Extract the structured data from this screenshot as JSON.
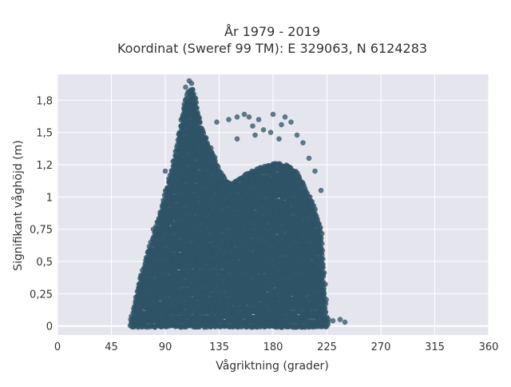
{
  "chart_data": {
    "type": "scatter",
    "title_line1": "År 1979 - 2019",
    "title_line2": "Koordinat (Sweref 99 TM): E 329063, N 6124283",
    "xlabel": "Vågriktning (grader)",
    "ylabel": "Signifikant våghöjd (m)",
    "xlim": [
      0,
      360
    ],
    "ylim": [
      -0.07,
      1.95
    ],
    "xticks": [
      {
        "value": 0,
        "label": "0"
      },
      {
        "value": 45,
        "label": "45"
      },
      {
        "value": 90,
        "label": "90"
      },
      {
        "value": 135,
        "label": "135"
      },
      {
        "value": 180,
        "label": "180"
      },
      {
        "value": 225,
        "label": "225"
      },
      {
        "value": 270,
        "label": "270"
      },
      {
        "value": 315,
        "label": "315"
      },
      {
        "value": 360,
        "label": "360"
      }
    ],
    "yticks": [
      {
        "value": 0,
        "label": "0"
      },
      {
        "value": 0.25,
        "label": "0,25"
      },
      {
        "value": 0.5,
        "label": "0,5"
      },
      {
        "value": 0.75,
        "label": "0,75"
      },
      {
        "value": 1.0,
        "label": "1"
      },
      {
        "value": 1.25,
        "label": "1,2"
      },
      {
        "value": 1.5,
        "label": "1,5"
      },
      {
        "value": 1.75,
        "label": "1,8"
      }
    ],
    "grid": true,
    "colors": {
      "background": "#e5e5ee",
      "grid": "#ffffff",
      "point": "#2e5266"
    },
    "envelope": {
      "x": [
        60,
        63,
        66,
        70,
        75,
        80,
        85,
        90,
        95,
        100,
        103,
        106,
        110,
        113,
        116,
        120,
        125,
        130,
        135,
        140,
        145,
        150,
        155,
        160,
        165,
        170,
        175,
        180,
        185,
        190,
        195,
        200,
        205,
        210,
        215,
        220,
        225,
        230
      ],
      "y_max": [
        0.02,
        0.1,
        0.25,
        0.4,
        0.55,
        0.7,
        0.85,
        1.02,
        1.2,
        1.4,
        1.58,
        1.72,
        1.82,
        1.84,
        1.72,
        1.55,
        1.42,
        1.33,
        1.2,
        1.13,
        1.1,
        1.12,
        1.15,
        1.18,
        1.2,
        1.22,
        1.23,
        1.25,
        1.25,
        1.24,
        1.22,
        1.18,
        1.1,
        1.0,
        0.9,
        0.75,
        0.05,
        0.04
      ]
    },
    "outliers": [
      {
        "x": 107,
        "y": 1.85
      },
      {
        "x": 110,
        "y": 1.9
      },
      {
        "x": 112,
        "y": 1.88
      },
      {
        "x": 133,
        "y": 1.58
      },
      {
        "x": 143,
        "y": 1.6
      },
      {
        "x": 150,
        "y": 1.62
      },
      {
        "x": 156,
        "y": 1.64
      },
      {
        "x": 160,
        "y": 1.62
      },
      {
        "x": 163,
        "y": 1.55
      },
      {
        "x": 168,
        "y": 1.6
      },
      {
        "x": 172,
        "y": 1.52
      },
      {
        "x": 178,
        "y": 1.5
      },
      {
        "x": 180,
        "y": 1.64
      },
      {
        "x": 187,
        "y": 1.56
      },
      {
        "x": 190,
        "y": 1.62
      },
      {
        "x": 195,
        "y": 1.58
      },
      {
        "x": 200,
        "y": 1.48
      },
      {
        "x": 205,
        "y": 1.42
      },
      {
        "x": 150,
        "y": 1.45
      },
      {
        "x": 165,
        "y": 1.48
      },
      {
        "x": 185,
        "y": 1.45
      },
      {
        "x": 210,
        "y": 1.3
      },
      {
        "x": 215,
        "y": 1.2
      },
      {
        "x": 220,
        "y": 1.05
      },
      {
        "x": 80,
        "y": 0.75
      },
      {
        "x": 90,
        "y": 1.2
      },
      {
        "x": 95,
        "y": 1.0
      },
      {
        "x": 230,
        "y": 0.04
      },
      {
        "x": 240,
        "y": 0.03
      },
      {
        "x": 236,
        "y": 0.05
      }
    ]
  }
}
